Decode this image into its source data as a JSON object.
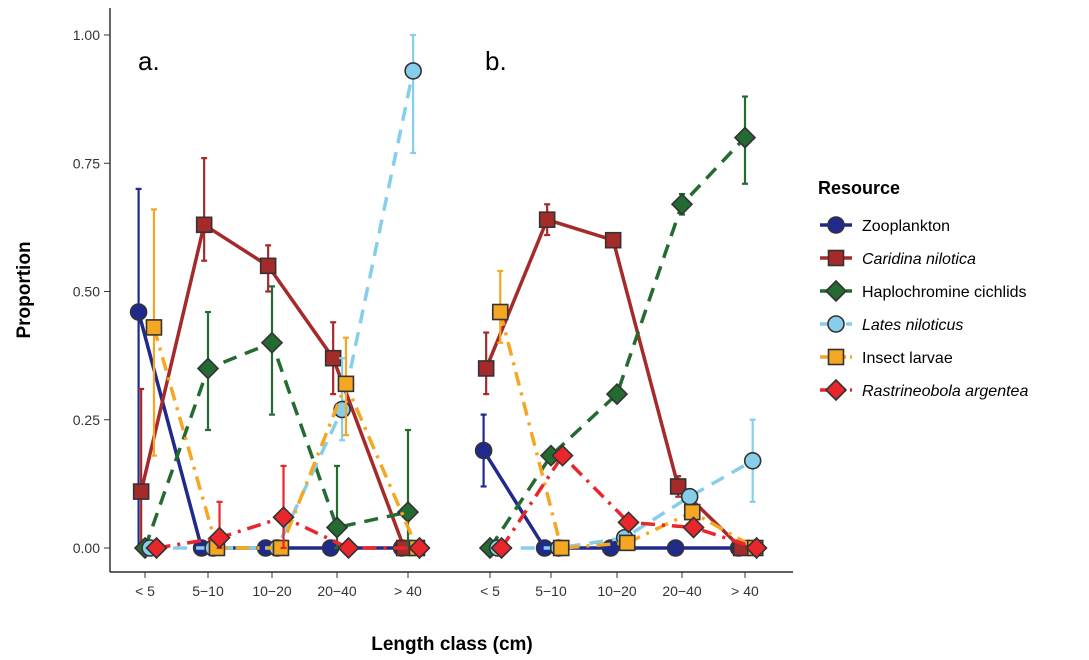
{
  "chart_data": {
    "type": "line",
    "xlabel": "Length class (cm)",
    "ylabel": "Proportion",
    "categories": [
      "< 5",
      "5−10",
      "10−20",
      "20−40",
      "> 40"
    ],
    "yticks": [
      "0.00",
      "0.25",
      "0.50",
      "0.75",
      "1.00"
    ],
    "ylim": [
      0,
      1.05
    ],
    "grid": false,
    "legend": {
      "title": "Resource",
      "position": "right",
      "items": [
        {
          "name": "Zooplankton",
          "italic": false
        },
        {
          "name": "Caridina nilotica",
          "italic": true
        },
        {
          "name": "Haplochromine cichlids",
          "italic": false
        },
        {
          "name": "Lates niloticus",
          "italic": true
        },
        {
          "name": "Insect larvae",
          "italic": false
        },
        {
          "name": "Rastrineobola argentea",
          "italic": true
        }
      ]
    },
    "panels": [
      {
        "label": "a.",
        "series": [
          {
            "name": "Zooplankton",
            "color": "#1f2a8c",
            "line": "solid",
            "marker": "circle",
            "offset": -0.1,
            "values": [
              0.46,
              0.0,
              0.0,
              0.0,
              0.0
            ],
            "err_low": [
              0.0,
              null,
              null,
              null,
              null
            ],
            "err_high": [
              0.7,
              null,
              null,
              null,
              null
            ]
          },
          {
            "name": "Caridina nilotica",
            "color": "#a52a2a",
            "line": "solid",
            "marker": "square",
            "offset": -0.06,
            "values": [
              0.11,
              0.63,
              0.55,
              0.37,
              0.0
            ],
            "err_low": [
              0.0,
              0.56,
              0.5,
              0.3,
              null
            ],
            "err_high": [
              0.31,
              0.76,
              0.59,
              0.44,
              null
            ]
          },
          {
            "name": "Haplochromine cichlids",
            "color": "#236b30",
            "line": "dashed",
            "marker": "diamond",
            "offset": 0.0,
            "values": [
              0.0,
              0.35,
              0.4,
              0.04,
              0.07
            ],
            "err_low": [
              null,
              0.23,
              0.26,
              0.0,
              0.0
            ],
            "err_high": [
              null,
              0.46,
              0.51,
              0.16,
              0.23
            ]
          },
          {
            "name": "Lates niloticus",
            "color": "#87ceeb",
            "line": "dashed",
            "marker": "circle",
            "offset": 0.08,
            "values": [
              0.0,
              0.0,
              0.0,
              0.27,
              0.93
            ],
            "err_low": [
              null,
              null,
              null,
              0.21,
              0.77
            ],
            "err_high": [
              null,
              null,
              null,
              0.37,
              1.0
            ]
          },
          {
            "name": "Insect larvae",
            "color": "#f5a623",
            "line": "dashdot",
            "marker": "square",
            "offset": 0.14,
            "values": [
              0.43,
              0.0,
              0.0,
              0.32,
              0.0
            ],
            "err_low": [
              0.18,
              null,
              null,
              0.22,
              null
            ],
            "err_high": [
              0.66,
              null,
              null,
              0.41,
              null
            ]
          },
          {
            "name": "Rastrineobola argentea",
            "color": "#e8262b",
            "line": "dashdot",
            "marker": "diamond",
            "offset": 0.18,
            "values": [
              0.0,
              0.02,
              0.06,
              0.0,
              0.0
            ],
            "err_low": [
              null,
              0.0,
              0.0,
              null,
              null
            ],
            "err_high": [
              null,
              0.09,
              0.16,
              null,
              null
            ]
          }
        ]
      },
      {
        "label": "b.",
        "series": [
          {
            "name": "Zooplankton",
            "color": "#1f2a8c",
            "line": "solid",
            "marker": "circle",
            "offset": -0.1,
            "values": [
              0.19,
              0.0,
              0.0,
              0.0,
              0.0
            ],
            "err_low": [
              0.12,
              null,
              null,
              null,
              null
            ],
            "err_high": [
              0.26,
              null,
              null,
              null,
              null
            ]
          },
          {
            "name": "Caridina nilotica",
            "color": "#a52a2a",
            "line": "solid",
            "marker": "square",
            "offset": -0.06,
            "values": [
              0.35,
              0.64,
              0.6,
              0.12,
              0.0
            ],
            "err_low": [
              0.3,
              0.61,
              null,
              0.1,
              null
            ],
            "err_high": [
              0.42,
              0.67,
              null,
              0.14,
              null
            ]
          },
          {
            "name": "Haplochromine cichlids",
            "color": "#236b30",
            "line": "dashed",
            "marker": "diamond",
            "offset": 0.0,
            "values": [
              0.0,
              0.18,
              0.3,
              0.67,
              0.8
            ],
            "err_low": [
              null,
              null,
              null,
              0.65,
              0.71
            ],
            "err_high": [
              null,
              null,
              null,
              0.69,
              0.88
            ]
          },
          {
            "name": "Lates niloticus",
            "color": "#87ceeb",
            "line": "dashed",
            "marker": "circle",
            "offset": 0.12,
            "values": [
              0.0,
              0.0,
              0.02,
              0.1,
              0.17
            ],
            "err_low": [
              null,
              null,
              null,
              null,
              0.09
            ],
            "err_high": [
              null,
              null,
              null,
              null,
              0.25
            ]
          },
          {
            "name": "Insect larvae",
            "color": "#f5a623",
            "line": "dashdot",
            "marker": "square",
            "offset": 0.16,
            "values": [
              0.46,
              0.0,
              0.01,
              0.07,
              0.0
            ],
            "err_low": [
              0.4,
              null,
              null,
              null,
              null
            ],
            "err_high": [
              0.54,
              null,
              null,
              null,
              null
            ]
          },
          {
            "name": "Rastrineobola argentea",
            "color": "#e8262b",
            "line": "dashdot",
            "marker": "diamond",
            "offset": 0.18,
            "values": [
              0.0,
              0.18,
              0.05,
              0.04,
              0.0
            ],
            "err_low": [
              null,
              null,
              null,
              null,
              null
            ],
            "err_high": [
              null,
              null,
              null,
              null,
              null
            ]
          }
        ]
      }
    ]
  }
}
